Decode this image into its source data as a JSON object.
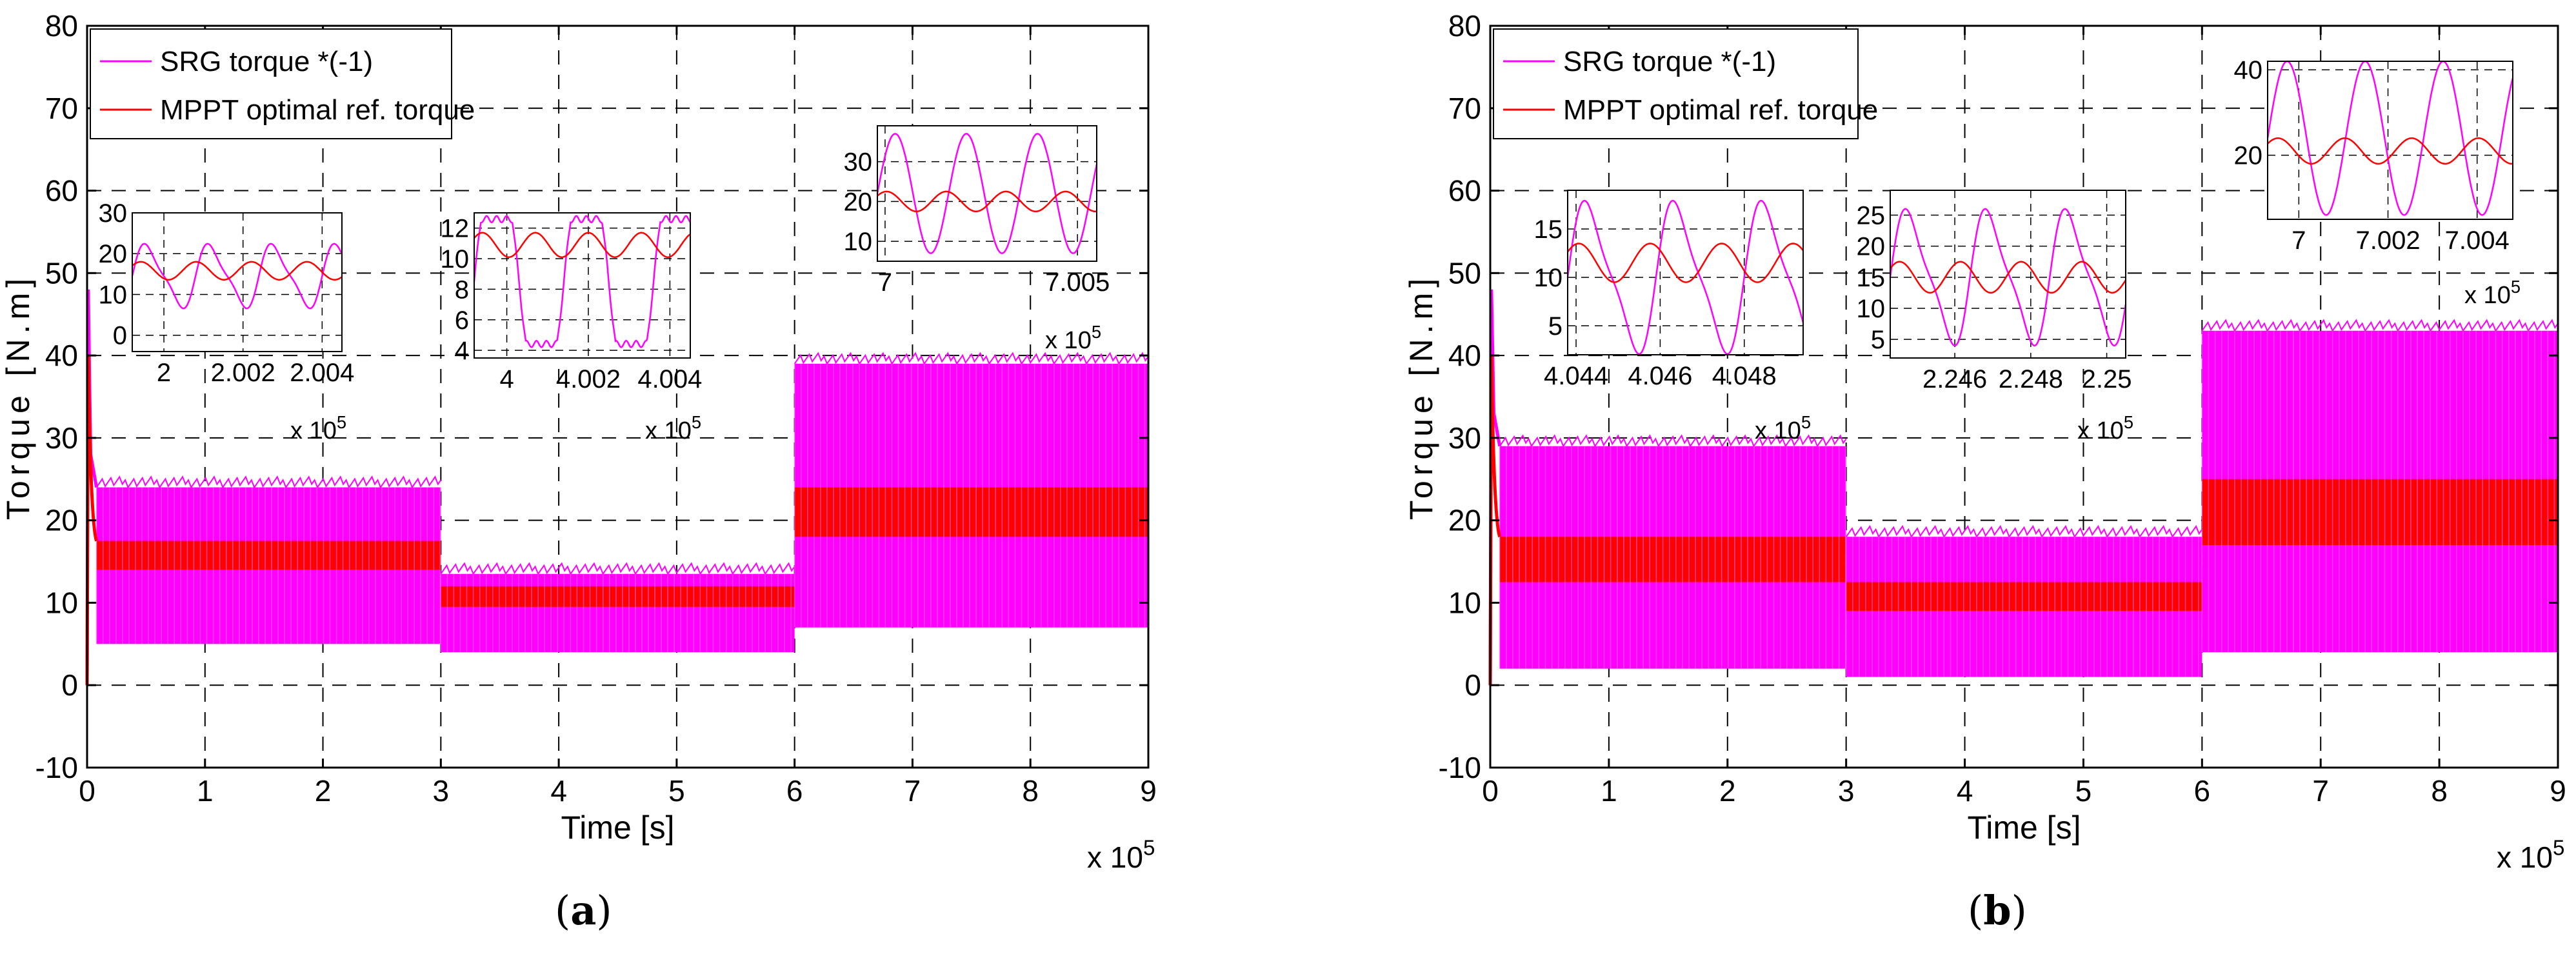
{
  "charts": {
    "a": {
      "caption": {
        "open": "(",
        "letter": "a",
        "close": ")"
      },
      "legend": [
        "SRG torque *(-1)",
        "MPPT optimal ref. torque"
      ]
    },
    "b": {
      "caption": {
        "open": "(",
        "letter": "b",
        "close": ")"
      },
      "legend": [
        "SRG torque *(-1)",
        "MPPT optimal ref. torque"
      ]
    }
  },
  "colors": {
    "srg": "#ff00ff",
    "mppt": "#ff0000",
    "grid": "#000000",
    "axis": "#000000"
  },
  "chart_data": [
    {
      "id": "a",
      "type": "line",
      "title": "",
      "xlabel": "Time [s]",
      "ylabel": "Torque [N.m]",
      "xlim": [
        0,
        9
      ],
      "ylim": [
        -10,
        80
      ],
      "xticks": [
        0,
        1,
        2,
        3,
        4,
        5,
        6,
        7,
        8,
        9
      ],
      "xticklabels": [
        "0",
        "1",
        "2",
        "3",
        "4",
        "5",
        "6",
        "7",
        "8",
        "9"
      ],
      "yticks": [
        -10,
        0,
        10,
        20,
        30,
        40,
        50,
        60,
        70,
        80
      ],
      "yticklabels": [
        "-10",
        "0",
        "10",
        "20",
        "30",
        "40",
        "50",
        "60",
        "70",
        "80"
      ],
      "x_multiplier": {
        "base": "x 10",
        "exp": "5"
      },
      "legend_position": "top-left",
      "series": [
        {
          "name": "SRG torque *(-1)",
          "bands": [
            {
              "x": [
                0.08,
                3
              ],
              "min": 5,
              "max": 24
            },
            {
              "x": [
                3,
                6
              ],
              "min": 4,
              "max": 13.5
            },
            {
              "x": [
                6,
                9
              ],
              "min": 7,
              "max": 39
            }
          ]
        },
        {
          "name": "MPPT optimal ref. torque",
          "bands": [
            {
              "x": [
                0.08,
                3
              ],
              "min": 14,
              "max": 17.5
            },
            {
              "x": [
                3,
                6
              ],
              "min": 9.5,
              "max": 12
            },
            {
              "x": [
                6,
                9
              ],
              "min": 18,
              "max": 24
            }
          ]
        }
      ],
      "startup_peak": 48,
      "insets": [
        {
          "xlim": [
            1.9992,
            2.0045
          ],
          "ylim": [
            -4,
            30
          ],
          "xticks": [
            2,
            2.002,
            2.004
          ],
          "xticklabels": [
            "2",
            "2.002",
            "2.004"
          ],
          "yticks": [
            0,
            10,
            20,
            30
          ],
          "yticklabels": [
            "0",
            "10",
            "20",
            "30"
          ],
          "x_multiplier": {
            "base": "x 10",
            "exp": "5"
          },
          "srg": {
            "mean": 14.5,
            "amp": 9,
            "period": 0.0016,
            "shape": "soft"
          },
          "mppt": {
            "mean": 15.8,
            "amp": 2.2,
            "period": 0.0014
          }
        },
        {
          "xlim": [
            3.9992,
            4.0045
          ],
          "ylim": [
            3.5,
            13
          ],
          "xticks": [
            4,
            4.002,
            4.004
          ],
          "xticklabels": [
            "4",
            "4.002",
            "4.004"
          ],
          "yticks": [
            4,
            6,
            8,
            10,
            12
          ],
          "yticklabels": [
            "4",
            "6",
            "8",
            "10",
            "12"
          ],
          "x_multiplier": {
            "base": "x 10",
            "exp": "5"
          },
          "srg": {
            "mean": 8.5,
            "amp": 4.3,
            "period": 0.0022,
            "shape": "plateau"
          },
          "mppt": {
            "mean": 10.9,
            "amp": 0.8,
            "period": 0.0013
          }
        },
        {
          "xlim": [
            6.9998,
            7.0055
          ],
          "ylim": [
            5,
            39
          ],
          "xticks": [
            7,
            7.005
          ],
          "xticklabels": [
            "7",
            "7.005"
          ],
          "yticks": [
            10,
            20,
            30
          ],
          "yticklabels": [
            "10",
            "20",
            "30"
          ],
          "x_multiplier": {
            "base": "x 10",
            "exp": "5"
          },
          "srg": {
            "mean": 22,
            "amp": 15,
            "period": 0.00185,
            "shape": "sine"
          },
          "mppt": {
            "mean": 20,
            "amp": 2.5,
            "period": 0.00155
          }
        }
      ]
    },
    {
      "id": "b",
      "type": "line",
      "title": "",
      "xlabel": "Time [s]",
      "ylabel": "Torque [N.m]",
      "xlim": [
        0,
        9
      ],
      "ylim": [
        -10,
        80
      ],
      "xticks": [
        0,
        1,
        2,
        3,
        4,
        5,
        6,
        7,
        8,
        9
      ],
      "xticklabels": [
        "0",
        "1",
        "2",
        "3",
        "4",
        "5",
        "6",
        "7",
        "8",
        "9"
      ],
      "yticks": [
        -10,
        0,
        10,
        20,
        30,
        40,
        50,
        60,
        70,
        80
      ],
      "yticklabels": [
        "-10",
        "0",
        "10",
        "20",
        "30",
        "40",
        "50",
        "60",
        "70",
        "80"
      ],
      "x_multiplier": {
        "base": "x 10",
        "exp": "5"
      },
      "legend_position": "top-left",
      "series": [
        {
          "name": "SRG torque *(-1)",
          "bands": [
            {
              "x": [
                0.08,
                3
              ],
              "min": 2,
              "max": 29
            },
            {
              "x": [
                3,
                6
              ],
              "min": 1,
              "max": 18
            },
            {
              "x": [
                6,
                9
              ],
              "min": 4,
              "max": 43
            }
          ]
        },
        {
          "name": "MPPT optimal ref. torque",
          "bands": [
            {
              "x": [
                0.08,
                3
              ],
              "min": 12.5,
              "max": 18
            },
            {
              "x": [
                3,
                6
              ],
              "min": 9,
              "max": 12.5
            },
            {
              "x": [
                6,
                9
              ],
              "min": 17,
              "max": 25
            }
          ]
        }
      ],
      "startup_peak": 48,
      "insets": [
        {
          "xlim": [
            4.0438,
            4.0494
          ],
          "ylim": [
            2,
            19
          ],
          "xticks": [
            4.044,
            4.046,
            4.048
          ],
          "xticklabels": [
            "4.044",
            "4.046",
            "4.048"
          ],
          "yticks": [
            5,
            10,
            15
          ],
          "yticklabels": [
            "5",
            "10",
            "15"
          ],
          "x_multiplier": {
            "base": "x 10",
            "exp": "5"
          },
          "srg": {
            "mean": 10,
            "amp": 9,
            "period": 0.0021,
            "shape": "soft"
          },
          "mppt": {
            "mean": 11.5,
            "amp": 2,
            "period": 0.0017
          }
        },
        {
          "xlim": [
            2.2443,
            2.2505
          ],
          "ylim": [
            2,
            29
          ],
          "xticks": [
            2.246,
            2.248,
            2.25
          ],
          "xticklabels": [
            "2.246",
            "2.248",
            "2.25"
          ],
          "yticks": [
            5,
            10,
            15,
            20,
            25
          ],
          "yticklabels": [
            "5",
            "10",
            "15",
            "20",
            "25"
          ],
          "x_multiplier": {
            "base": "x 10",
            "exp": "5"
          },
          "srg": {
            "mean": 15,
            "amp": 12.5,
            "period": 0.0021,
            "shape": "soft"
          },
          "mppt": {
            "mean": 15,
            "amp": 2.5,
            "period": 0.0016
          }
        },
        {
          "xlim": [
            6.9993,
            7.0048
          ],
          "ylim": [
            5,
            42
          ],
          "xticks": [
            7,
            7.002,
            7.004
          ],
          "xticklabels": [
            "7",
            "7.002",
            "7.004"
          ],
          "yticks": [
            20,
            40
          ],
          "yticklabels": [
            "20",
            "40"
          ],
          "x_multiplier": {
            "base": "x 10",
            "exp": "5"
          },
          "srg": {
            "mean": 24,
            "amp": 18,
            "period": 0.00175,
            "shape": "sine"
          },
          "mppt": {
            "mean": 21,
            "amp": 3,
            "period": 0.0015
          }
        }
      ]
    }
  ]
}
